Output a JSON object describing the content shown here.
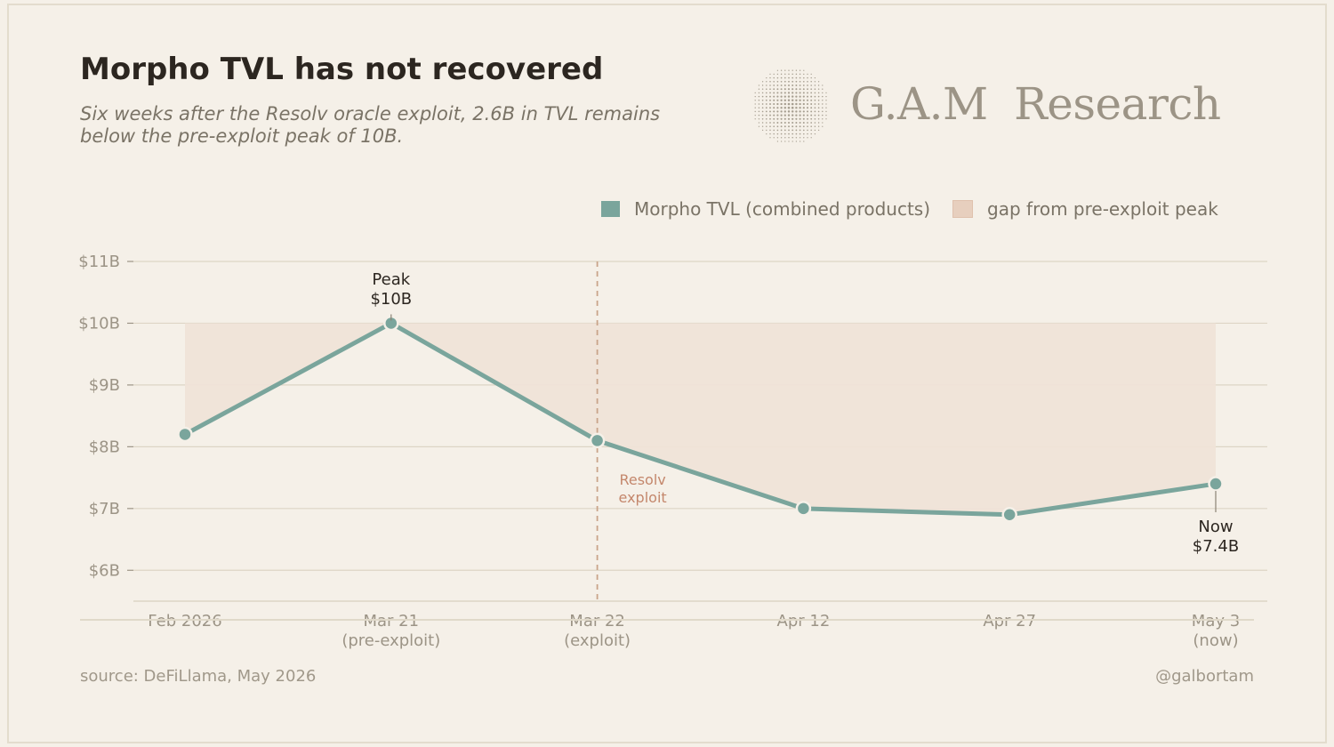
{
  "title": "Morpho TVL has not recovered",
  "subtitle": "Six weeks after the Resolv oracle exploit, 2.6B in TVL remains below the pre-exploit peak of 10B.",
  "brand": {
    "name": "G.A.M  Research",
    "logo": "dotted-globe-icon"
  },
  "legend": {
    "series_label": "Morpho TVL (combined products)",
    "gap_label": "gap from pre-exploit peak"
  },
  "colors": {
    "line": "#7aa59c",
    "gap_fill": "#efe3d8",
    "gap_swatch": "#e7cfbe",
    "exploit_line": "#c9a48a",
    "exploit_text": "#c4876c",
    "axis_text": "#9c9486",
    "grid": "#ddd5c5"
  },
  "chart_data": {
    "type": "line",
    "categories": [
      "Feb 2026",
      "Mar 21\n(pre-exploit)",
      "Mar 22\n(exploit)",
      "Apr 12",
      "Apr 27",
      "May 3\n(now)"
    ],
    "series": [
      {
        "name": "Morpho TVL (combined products)",
        "values": [
          8.2,
          10.0,
          8.1,
          7.0,
          6.9,
          7.4
        ]
      }
    ],
    "peak": 10.0,
    "ylim": [
      5.5,
      11
    ],
    "yticks": [
      6,
      7,
      8,
      9,
      10,
      11
    ],
    "ytick_labels": [
      "$6B",
      "$7B",
      "$8B",
      "$9B",
      "$10B",
      "$11B"
    ],
    "annotations": [
      {
        "index": 1,
        "label": "Peak\n$10B"
      },
      {
        "index": 5,
        "label": "Now\n$7.4B"
      }
    ],
    "event": {
      "index": 2,
      "label": "Resolv\nexploit"
    }
  },
  "footer": {
    "source": "source: DeFiLlama, May 2026",
    "handle": "@galbortam"
  }
}
